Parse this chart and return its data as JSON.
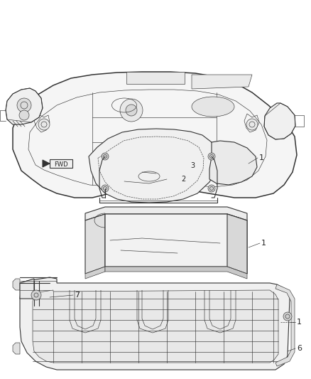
{
  "bg_color": "#ffffff",
  "line_color": "#333333",
  "label_color": "#222222",
  "figsize": [
    4.38,
    5.33
  ],
  "dpi": 100,
  "label_fontsize": 7.5,
  "thin_lw": 0.45,
  "main_lw": 0.8,
  "thick_lw": 1.1
}
